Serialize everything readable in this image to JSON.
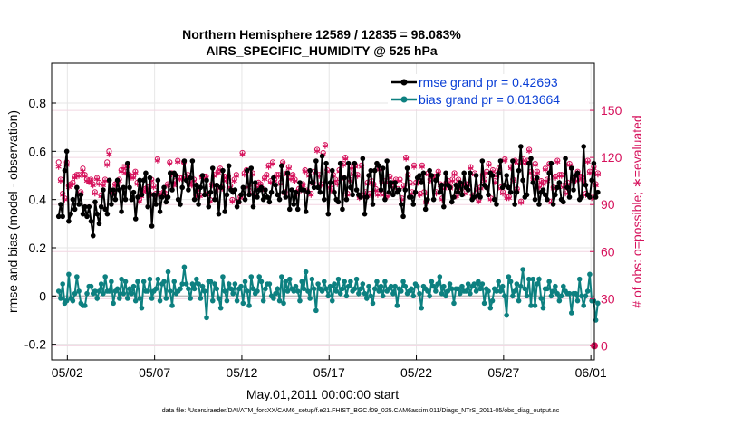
{
  "chart_data": {
    "type": "line",
    "title_line1": "Northern Hemisphere 12589 / 12835 = 98.083%",
    "title_line2": "AIRS_SPECIFIC_HUMIDITY @ 525 hPa",
    "xlabel": "May.01,2011 00:00:00 start",
    "ylabel_left": "rmse and bias (model - observation)",
    "ylabel_right": "# of obs: o=possible; ∗=evaluated",
    "footer": "data file: /Users/raeder/DAI/ATM_forcXX/CAM6_setup/f.e21.FHIST_BGC.f09_025.CAM6assim.011/Diags_NTrS_2011-05/obs_diag_output.nc",
    "x_ticks": [
      {
        "x": 1.5,
        "label": "05/02"
      },
      {
        "x": 6.5,
        "label": "05/07"
      },
      {
        "x": 11.5,
        "label": "05/12"
      },
      {
        "x": 16.5,
        "label": "05/17"
      },
      {
        "x": 21.5,
        "label": "05/22"
      },
      {
        "x": 26.5,
        "label": "05/27"
      },
      {
        "x": 31.5,
        "label": "06/01"
      }
    ],
    "xlim": [
      0.6,
      31.7
    ],
    "ylim_left": [
      -0.265,
      0.965
    ],
    "yticks_left": [
      -0.2,
      0,
      0.2,
      0.4,
      0.6,
      0.8
    ],
    "ytick_labels_left": [
      "-0.2",
      "0",
      "0.2",
      "0.4",
      "0.6",
      "0.8"
    ],
    "ylim_right": [
      -9,
      180
    ],
    "yticks_right": [
      0,
      30,
      60,
      90,
      120,
      150
    ],
    "ytick_labels_right": [
      "0",
      "30",
      "60",
      "90",
      "120",
      "150"
    ],
    "zero_line_color": "#bbbbbb",
    "series": [
      {
        "name": "rmse grand pr = 0.42693",
        "color": "#000000",
        "axis": "left",
        "values": [
          0.33,
          0.38,
          0.33,
          0.52,
          0.6,
          0.31,
          0.34,
          0.4,
          0.36,
          0.45,
          0.38,
          0.42,
          0.34,
          0.37,
          0.33,
          0.37,
          0.31,
          0.25,
          0.39,
          0.34,
          0.3,
          0.37,
          0.44,
          0.36,
          0.34,
          0.48,
          0.38,
          0.44,
          0.4,
          0.48,
          0.44,
          0.35,
          0.45,
          0.4,
          0.55,
          0.45,
          0.4,
          0.43,
          0.32,
          0.41,
          0.48,
          0.42,
          0.48,
          0.51,
          0.37,
          0.49,
          0.29,
          0.42,
          0.38,
          0.48,
          0.35,
          0.41,
          0.45,
          0.39,
          0.41,
          0.51,
          0.44,
          0.51,
          0.5,
          0.4,
          0.38,
          0.45,
          0.56,
          0.48,
          0.44,
          0.49,
          0.56,
          0.4,
          0.46,
          0.38,
          0.45,
          0.5,
          0.42,
          0.48,
          0.37,
          0.43,
          0.53,
          0.4,
          0.46,
          0.34,
          0.45,
          0.52,
          0.35,
          0.42,
          0.54,
          0.44,
          0.43,
          0.44,
          0.37,
          0.39,
          0.42,
          0.45,
          0.4,
          0.52,
          0.42,
          0.53,
          0.37,
          0.47,
          0.41,
          0.44,
          0.45,
          0.4,
          0.44,
          0.41,
          0.39,
          0.43,
          0.49,
          0.46,
          0.42,
          0.4,
          0.54,
          0.43,
          0.41,
          0.51,
          0.36,
          0.44,
          0.38,
          0.43,
          0.36,
          0.47,
          0.44,
          0.44,
          0.35,
          0.43,
          0.52,
          0.47,
          0.45,
          0.56,
          0.45,
          0.43,
          0.58,
          0.4,
          0.55,
          0.34,
          0.47,
          0.52,
          0.43,
          0.4,
          0.39,
          0.55,
          0.36,
          0.49,
          0.4,
          0.55,
          0.45,
          0.42,
          0.55,
          0.44,
          0.42,
          0.41,
          0.57,
          0.34,
          0.41,
          0.5,
          0.52,
          0.38,
          0.52,
          0.55,
          0.54,
          0.44,
          0.53,
          0.4,
          0.56,
          0.43,
          0.47,
          0.42,
          0.47,
          0.43,
          0.44,
          0.38,
          0.33,
          0.44,
          0.53,
          0.41,
          0.41,
          0.38,
          0.43,
          0.49,
          0.5,
          0.47,
          0.51,
          0.36,
          0.4,
          0.52,
          0.5,
          0.4,
          0.48,
          0.5,
          0.43,
          0.46,
          0.37,
          0.51,
          0.46,
          0.45,
          0.39,
          0.41,
          0.46,
          0.43,
          0.47,
          0.42,
          0.51,
          0.45,
          0.44,
          0.51,
          0.4,
          0.41,
          0.5,
          0.42,
          0.41,
          0.56,
          0.46,
          0.45,
          0.42,
          0.51,
          0.5,
          0.4,
          0.38,
          0.51,
          0.56,
          0.45,
          0.46,
          0.5,
          0.45,
          0.43,
          0.56,
          0.38,
          0.43,
          0.52,
          0.62,
          0.48,
          0.41,
          0.42,
          0.55,
          0.57,
          0.47,
          0.4,
          0.49,
          0.38,
          0.43,
          0.44,
          0.42,
          0.4,
          0.51,
          0.55,
          0.38,
          0.42,
          0.45,
          0.47,
          0.4,
          0.39,
          0.57,
          0.45,
          0.41,
          0.53,
          0.44,
          0.5,
          0.51,
          0.4,
          0.41,
          0.62,
          0.46,
          0.42,
          0.41,
          0.48,
          0.55,
          0.41,
          0.43
        ]
      },
      {
        "name": "bias grand pr = 0.013664",
        "color": "#0d8080",
        "axis": "left",
        "values": [
          0.02,
          -0.01,
          0.05,
          -0.03,
          -0.02,
          0.09,
          -0.01,
          -0.02,
          0.01,
          0.08,
          0.02,
          -0.03,
          -0.04,
          -0.04,
          0.01,
          0.04,
          0.04,
          0.01,
          0.02,
          -0.01,
          0.02,
          0.05,
          0.01,
          0.08,
          0.02,
          0.02,
          0.06,
          -0.03,
          0.02,
          0.03,
          -0.01,
          0.07,
          0.01,
          0.06,
          -0.01,
          0.03,
          0.01,
          0.04,
          -0.02,
          0.06,
          -0.01,
          -0.05,
          0.06,
          0.02,
          0.02,
          0.07,
          -0.01,
          0.02,
          0.03,
          0.07,
          -0.02,
          0.05,
          0.06,
          -0.01,
          0.1,
          0.02,
          -0.04,
          0.06,
          0.01,
          0.02,
          0.03,
          0.05,
          0.12,
          0.05,
          0.03,
          -0.01,
          0.05,
          0.03,
          0.07,
          0.05,
          -0.01,
          0.04,
          0.02,
          -0.09,
          0.06,
          0.06,
          -0.02,
          0.05,
          0.03,
          -0.01,
          -0.05,
          0.08,
          0.02,
          -0.02,
          0.05,
          0.03,
          0.01,
          0.05,
          -0.02,
          0.03,
          0.04,
          -0.03,
          0.06,
          0.02,
          -0.04,
          0.08,
          0.03,
          0.01,
          0.02,
          0.08,
          0.06,
          -0.02,
          0.03,
          0.05,
          0.05,
          0.0,
          -0.01,
          0.01,
          0.03,
          -0.02,
          0.08,
          -0.03,
          0.06,
          0.02,
          0.07,
          0.03,
          0.02,
          0.04,
          0.02,
          -0.02,
          0.06,
          0.03,
          0.1,
          0.02,
          -0.01,
          0.07,
          0.03,
          -0.06,
          0.05,
          0.03,
          0.02,
          0.06,
          0.03,
          0.0,
          0.04,
          -0.02,
          0.05,
          0.02,
          0.07,
          0.01,
          0.03,
          0.06,
          0.0,
          0.04,
          0.06,
          0.02,
          0.03,
          0.07,
          0.01,
          0.03,
          0.05,
          0.01,
          -0.01,
          0.04,
          0.0,
          -0.03,
          0.03,
          0.06,
          0.02,
          0.04,
          0.0,
          0.06,
          0.02,
          0.03,
          0.04,
          0.01,
          0.04,
          -0.04,
          0.03,
          0.02,
          0.06,
          0.04,
          0.01,
          0.02,
          0.03,
          0.0,
          0.05,
          0.04,
          0.01,
          -0.05,
          0.04,
          0.03,
          0.02,
          0.0,
          0.06,
          0.04,
          0.02,
          0.05,
          0.08,
          0.01,
          0.04,
          0.0,
          0.02,
          0.05,
          0.03,
          -0.03,
          0.03,
          0.03,
          0.01,
          0.04,
          0.02,
          0.02,
          0.05,
          0.01,
          0.04,
          0.05,
          0.02,
          0.06,
          0.03,
          0.05,
          -0.03,
          0.03,
          0.02,
          -0.05,
          -0.02,
          0.03,
          0.02,
          0.06,
          0.02,
          0.04,
          0.0,
          -0.08,
          0.08,
          0.06,
          0.0,
          0.02,
          0.05,
          -0.02,
          0.04,
          0.11,
          0.03,
          0.0,
          0.07,
          -0.04,
          0.07,
          -0.04,
          0.05,
          0.07,
          -0.01,
          -0.05,
          0.03,
          0.03,
          0.06,
          0.0,
          0.02,
          0.04,
          0.01,
          -0.02,
          0.0,
          0.04,
          0.02,
          0.01,
          0.01,
          -0.07,
          0.01,
          0.01,
          -0.02,
          0.07,
          0.0,
          -0.04,
          0.0,
          0.02,
          0.09,
          -0.02,
          -0.02,
          -0.1,
          -0.03
        ]
      },
      {
        "name": "# of obs possible",
        "color": "#d6125c",
        "axis": "right",
        "marker": "o",
        "values": [
          117,
          106,
          97,
          94,
          117,
          102,
          103,
          104,
          108,
          109,
          109,
          98,
          113,
          109,
          106,
          105,
          106,
          103,
          98,
          107,
          104,
          96,
          103,
          106,
          117,
          124,
          99,
          98,
          103,
          104,
          106,
          112,
          114,
          111,
          115,
          109,
          108,
          108,
          111,
          104,
          93,
          96,
          99,
          100,
          101,
          97,
          106,
          102,
          97,
          119,
          97,
          96,
          98,
          97,
          103,
          117,
          110,
          103,
          105,
          118,
          107,
          107,
          117,
          108,
          109,
          105,
          103,
          106,
          96,
          100,
          96,
          108,
          108,
          108,
          97,
          93,
          103,
          109,
          100,
          111,
          113,
          101,
          108,
          106,
          108,
          102,
          93,
          106,
          109,
          92,
          95,
          123,
          110,
          112,
          102,
          98,
          110,
          97,
          102,
          104,
          103,
          100,
          107,
          109,
          115,
          105,
          117,
          106,
          109,
          109,
          104,
          117,
          98,
          110,
          114,
          107,
          109,
          106,
          98,
          100,
          100,
          103,
          112,
          99,
          109,
          97,
          104,
          111,
          125,
          109,
          103,
          123,
          128,
          112,
          102,
          100,
          109,
          106,
          104,
          112,
          107,
          116,
          120,
          97,
          106,
          114,
          110,
          115,
          109,
          95,
          115,
          96,
          98,
          104,
          97,
          105,
          103,
          100,
          97,
          113,
          105,
          97,
          105,
          96,
          108,
          102,
          104,
          106,
          100,
          106,
          94,
          102,
          120,
          109,
          104,
          98,
          115,
          104,
          105,
          97,
          115,
          98,
          92,
          110,
          106,
          108,
          108,
          98,
          111,
          103,
          94,
          101,
          104,
          105,
          101,
          106,
          110,
          96,
          106,
          101,
          103,
          98,
          103,
          103,
          114,
          96,
          110,
          100,
          93,
          101,
          109,
          106,
          111,
          116,
          94,
          112,
          105,
          109,
          113,
          101,
          98,
          119,
          95,
          95,
          114,
          106,
          118,
          100,
          117,
          92,
          119,
          117,
          118,
          125,
          111,
          107,
          116,
          111,
          102,
          105,
          104,
          113,
          106,
          116,
          92,
          101,
          108,
          118,
          109,
          109,
          102,
          98,
          104,
          116,
          114,
          106,
          106,
          111,
          107,
          108,
          105,
          97,
          118,
          111,
          95,
          114,
          103,
          110
        ]
      },
      {
        "name": "# of obs evaluated",
        "color": "#d6125c",
        "axis": "right",
        "marker": "*",
        "values": [
          113,
          104,
          95,
          92,
          114,
          100,
          101,
          102,
          106,
          107,
          107,
          96,
          110,
          107,
          104,
          103,
          104,
          101,
          96,
          105,
          102,
          94,
          101,
          104,
          114,
          121,
          97,
          96,
          101,
          102,
          104,
          110,
          112,
          109,
          113,
          107,
          106,
          106,
          109,
          102,
          91,
          94,
          97,
          98,
          99,
          95,
          104,
          100,
          95,
          117,
          95,
          94,
          96,
          95,
          101,
          115,
          108,
          101,
          103,
          116,
          105,
          105,
          115,
          106,
          107,
          103,
          101,
          104,
          94,
          98,
          94,
          106,
          106,
          106,
          95,
          91,
          101,
          107,
          98,
          109,
          111,
          99,
          106,
          104,
          106,
          100,
          91,
          104,
          107,
          90,
          93,
          121,
          108,
          110,
          100,
          96,
          108,
          95,
          100,
          102,
          101,
          98,
          105,
          107,
          113,
          103,
          115,
          104,
          107,
          107,
          102,
          115,
          96,
          108,
          112,
          105,
          107,
          104,
          96,
          98,
          98,
          101,
          110,
          97,
          107,
          95,
          102,
          109,
          123,
          107,
          101,
          121,
          126,
          110,
          100,
          98,
          107,
          104,
          102,
          110,
          105,
          114,
          118,
          95,
          104,
          112,
          108,
          113,
          107,
          93,
          113,
          94,
          96,
          102,
          95,
          103,
          101,
          98,
          95,
          111,
          103,
          95,
          103,
          94,
          106,
          100,
          102,
          104,
          98,
          104,
          92,
          100,
          118,
          107,
          102,
          96,
          113,
          102,
          103,
          95,
          113,
          96,
          90,
          108,
          104,
          106,
          106,
          96,
          109,
          101,
          92,
          99,
          102,
          103,
          99,
          104,
          108,
          94,
          104,
          99,
          101,
          96,
          101,
          101,
          112,
          94,
          108,
          98,
          91,
          99,
          107,
          104,
          109,
          114,
          92,
          110,
          103,
          107,
          111,
          99,
          96,
          117,
          93,
          93,
          112,
          104,
          116,
          98,
          115,
          90,
          117,
          115,
          116,
          123,
          109,
          105,
          114,
          109,
          100,
          103,
          102,
          111,
          104,
          114,
          90,
          99,
          106,
          116,
          107,
          107,
          100,
          96,
          102,
          114,
          112,
          104,
          104,
          109,
          105,
          106,
          103,
          95,
          116,
          109,
          93,
          112,
          101,
          108
        ]
      }
    ],
    "end_marker_value_right": 0
  }
}
